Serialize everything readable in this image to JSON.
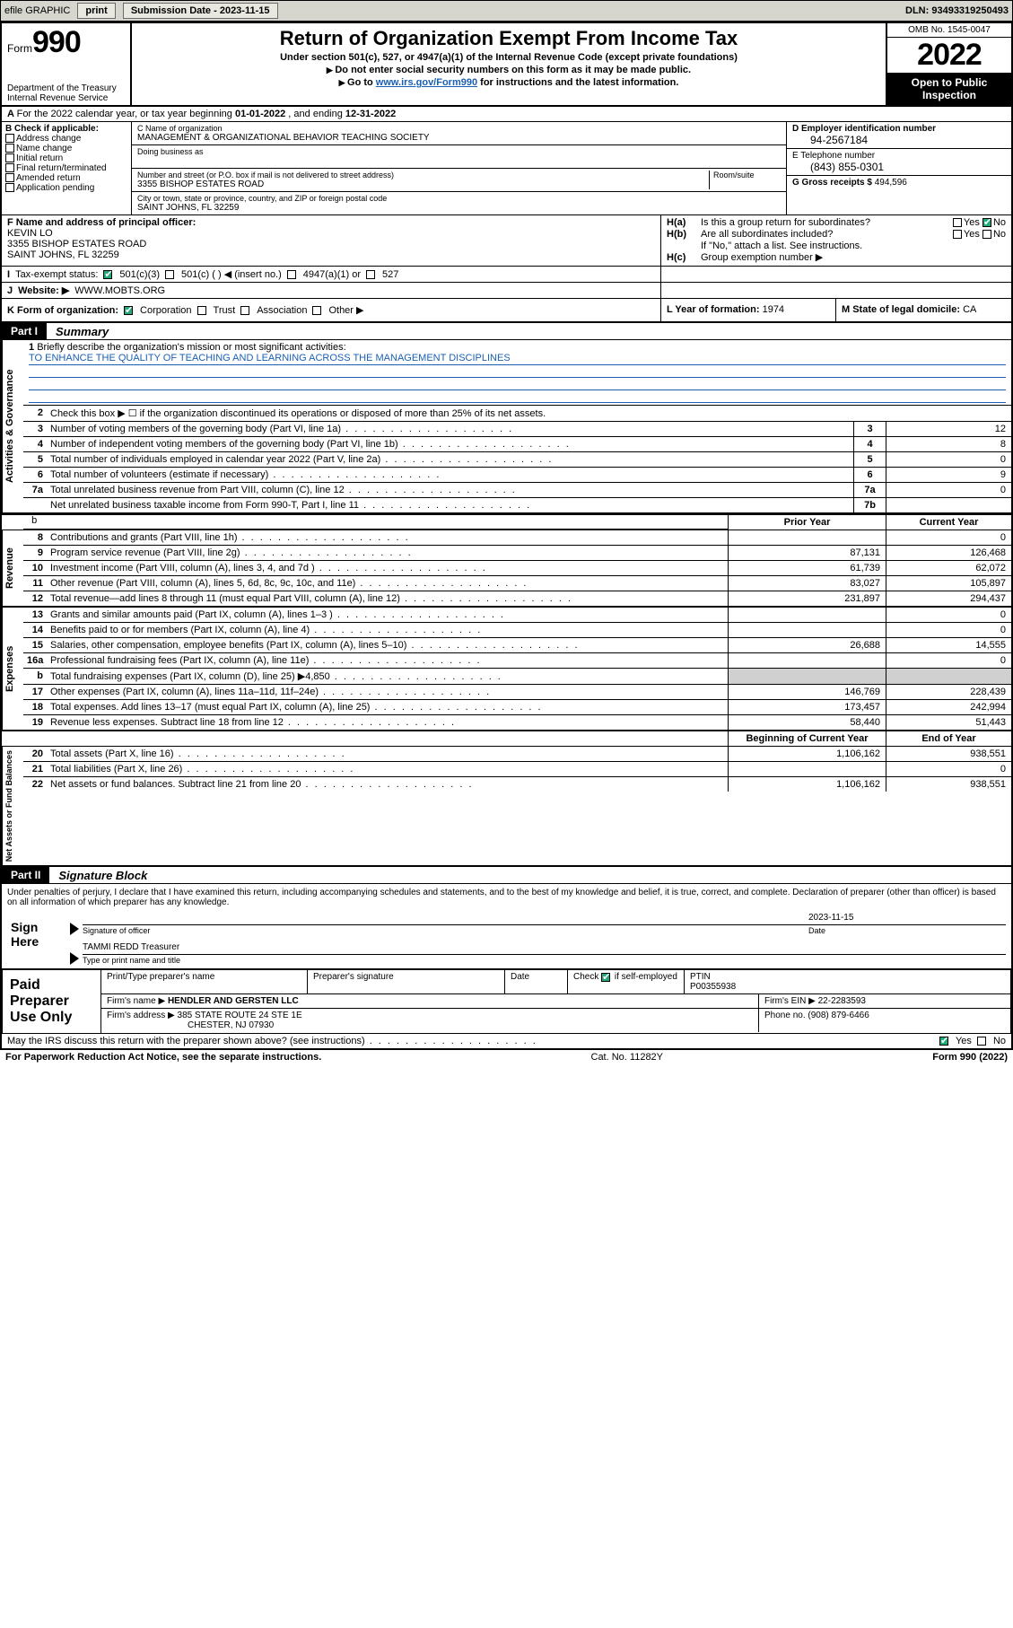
{
  "topbar": {
    "efile": "efile GRAPHIC",
    "print": "print",
    "subdate_label": "Submission Date - 2023-11-15",
    "dln": "DLN: 93493319250493"
  },
  "header": {
    "form_label": "Form",
    "form_num": "990",
    "dept": "Department of the Treasury\nInternal Revenue Service",
    "title": "Return of Organization Exempt From Income Tax",
    "sub1": "Under section 501(c), 527, or 4947(a)(1) of the Internal Revenue Code (except private foundations)",
    "sub2": "Do not enter social security numbers on this form as it may be made public.",
    "sub3_pre": "Go to ",
    "sub3_link": "www.irs.gov/Form990",
    "sub3_post": " for instructions and the latest information.",
    "omb": "OMB No. 1545-0047",
    "year": "2022",
    "open": "Open to Public Inspection"
  },
  "rowA": {
    "text_pre": "For the 2022 calendar year, or tax year beginning ",
    "begin": "01-01-2022",
    "mid": " , and ending ",
    "end": "12-31-2022"
  },
  "B": {
    "label": "B Check if applicable:",
    "opts": [
      "Address change",
      "Name change",
      "Initial return",
      "Final return/terminated",
      "Amended return",
      "Application pending"
    ]
  },
  "C": {
    "name_label": "C Name of organization",
    "name": "MANAGEMENT & ORGANIZATIONAL BEHAVIOR TEACHING SOCIETY",
    "dba_label": "Doing business as",
    "addr_label": "Number and street (or P.O. box if mail is not delivered to street address)",
    "room_label": "Room/suite",
    "addr": "3355 BISHOP ESTATES ROAD",
    "city_label": "City or town, state or province, country, and ZIP or foreign postal code",
    "city": "SAINT JOHNS, FL  32259"
  },
  "D": {
    "label": "D Employer identification number",
    "val": "94-2567184"
  },
  "E": {
    "label": "E Telephone number",
    "val": "(843) 855-0301"
  },
  "G": {
    "label": "G Gross receipts $",
    "val": "494,596"
  },
  "F": {
    "label": "F Name and address of principal officer:",
    "name": "KEVIN LO",
    "addr1": "3355 BISHOP ESTATES ROAD",
    "addr2": "SAINT JOHNS, FL  32259"
  },
  "H": {
    "a": "Is this a group return for subordinates?",
    "b": "Are all subordinates included?",
    "b_note": "If \"No,\" attach a list. See instructions.",
    "c": "Group exemption number ▶",
    "Ha_yes": "Yes",
    "Ha_no": "No",
    "Hb_yes": "Yes",
    "Hb_no": "No"
  },
  "I": {
    "label": "Tax-exempt status:",
    "c3": "501(c)(3)",
    "c": "501(c) (   ) ◀ (insert no.)",
    "a1": "4947(a)(1) or",
    "527": "527"
  },
  "J": {
    "label": "Website: ▶",
    "val": "WWW.MOBTS.ORG"
  },
  "K": {
    "label": "K Form of organization:",
    "corp": "Corporation",
    "trust": "Trust",
    "assoc": "Association",
    "other": "Other ▶"
  },
  "L": {
    "label": "L Year of formation:",
    "val": "1974"
  },
  "M": {
    "label": "M State of legal domicile:",
    "val": "CA"
  },
  "partI": {
    "tag": "Part I",
    "title": "Summary"
  },
  "summary": {
    "s1": {
      "vlabel": "Activities & Governance",
      "l1_label": "Briefly describe the organization's mission or most significant activities:",
      "l1_mission": "TO ENHANCE THE QUALITY OF TEACHING AND LEARNING ACROSS THE MANAGEMENT DISCIPLINES",
      "l2": "Check this box ▶ ☐  if the organization discontinued its operations or disposed of more than 25% of its net assets.",
      "rows": [
        {
          "n": "3",
          "t": "Number of voting members of the governing body (Part VI, line 1a)",
          "box": "3",
          "v": "12"
        },
        {
          "n": "4",
          "t": "Number of independent voting members of the governing body (Part VI, line 1b)",
          "box": "4",
          "v": "8"
        },
        {
          "n": "5",
          "t": "Total number of individuals employed in calendar year 2022 (Part V, line 2a)",
          "box": "5",
          "v": "0"
        },
        {
          "n": "6",
          "t": "Total number of volunteers (estimate if necessary)",
          "box": "6",
          "v": "9"
        },
        {
          "n": "7a",
          "t": "Total unrelated business revenue from Part VIII, column (C), line 12",
          "box": "7a",
          "v": "0"
        },
        {
          "n": "",
          "t": "Net unrelated business taxable income from Form 990-T, Part I, line 11",
          "box": "7b",
          "v": ""
        }
      ]
    },
    "colhdr": {
      "prior": "Prior Year",
      "curr": "Current Year"
    },
    "colhdr2": {
      "prior": "Beginning of Current Year",
      "curr": "End of Year"
    },
    "rev": {
      "vlabel": "Revenue",
      "rows": [
        {
          "n": "8",
          "t": "Contributions and grants (Part VIII, line 1h)",
          "p": "",
          "c": "0"
        },
        {
          "n": "9",
          "t": "Program service revenue (Part VIII, line 2g)",
          "p": "87,131",
          "c": "126,468"
        },
        {
          "n": "10",
          "t": "Investment income (Part VIII, column (A), lines 3, 4, and 7d )",
          "p": "61,739",
          "c": "62,072"
        },
        {
          "n": "11",
          "t": "Other revenue (Part VIII, column (A), lines 5, 6d, 8c, 9c, 10c, and 11e)",
          "p": "83,027",
          "c": "105,897"
        },
        {
          "n": "12",
          "t": "Total revenue—add lines 8 through 11 (must equal Part VIII, column (A), line 12)",
          "p": "231,897",
          "c": "294,437"
        }
      ]
    },
    "exp": {
      "vlabel": "Expenses",
      "rows": [
        {
          "n": "13",
          "t": "Grants and similar amounts paid (Part IX, column (A), lines 1–3 )",
          "p": "",
          "c": "0"
        },
        {
          "n": "14",
          "t": "Benefits paid to or for members (Part IX, column (A), line 4)",
          "p": "",
          "c": "0"
        },
        {
          "n": "15",
          "t": "Salaries, other compensation, employee benefits (Part IX, column (A), lines 5–10)",
          "p": "26,688",
          "c": "14,555"
        },
        {
          "n": "16a",
          "t": "Professional fundraising fees (Part IX, column (A), line 11e)",
          "p": "",
          "c": "0"
        },
        {
          "n": "b",
          "t": "Total fundraising expenses (Part IX, column (D), line 25) ▶4,850",
          "p": "shade",
          "c": "shade"
        },
        {
          "n": "17",
          "t": "Other expenses (Part IX, column (A), lines 11a–11d, 11f–24e)",
          "p": "146,769",
          "c": "228,439"
        },
        {
          "n": "18",
          "t": "Total expenses. Add lines 13–17 (must equal Part IX, column (A), line 25)",
          "p": "173,457",
          "c": "242,994"
        },
        {
          "n": "19",
          "t": "Revenue less expenses. Subtract line 18 from line 12",
          "p": "58,440",
          "c": "51,443"
        }
      ]
    },
    "net": {
      "vlabel": "Net Assets or Fund Balances",
      "rows": [
        {
          "n": "20",
          "t": "Total assets (Part X, line 16)",
          "p": "1,106,162",
          "c": "938,551"
        },
        {
          "n": "21",
          "t": "Total liabilities (Part X, line 26)",
          "p": "",
          "c": "0"
        },
        {
          "n": "22",
          "t": "Net assets or fund balances. Subtract line 21 from line 20",
          "p": "1,106,162",
          "c": "938,551"
        }
      ]
    }
  },
  "partII": {
    "tag": "Part II",
    "title": "Signature Block"
  },
  "sig": {
    "decl": "Under penalties of perjury, I declare that I have examined this return, including accompanying schedules and statements, and to the best of my knowledge and belief, it is true, correct, and complete. Declaration of preparer (other than officer) is based on all information of which preparer has any knowledge.",
    "here": "Sign Here",
    "date": "2023-11-15",
    "sig_label": "Signature of officer",
    "date_label": "Date",
    "name": "TAMMI REDD Treasurer",
    "name_label": "Type or print name and title"
  },
  "prep": {
    "label": "Paid Preparer Use Only",
    "h1": "Print/Type preparer's name",
    "h2": "Preparer's signature",
    "h3": "Date",
    "h4": "Check ☑ if self-employed",
    "h5": "PTIN",
    "ptin": "P00355938",
    "firm_label": "Firm's name  ▶",
    "firm": "HENDLER AND GERSTEN LLC",
    "ein_label": "Firm's EIN ▶",
    "ein": "22-2283593",
    "addr_label": "Firm's address ▶",
    "addr1": "385 STATE ROUTE 24 STE 1E",
    "addr2": "CHESTER, NJ  07930",
    "phone_label": "Phone no.",
    "phone": "(908) 879-6466"
  },
  "footer": {
    "discuss": "May the IRS discuss this return with the preparer shown above? (see instructions)",
    "yes": "Yes",
    "no": "No",
    "pra": "For Paperwork Reduction Act Notice, see the separate instructions.",
    "cat": "Cat. No. 11282Y",
    "form": "Form 990 (2022)"
  }
}
